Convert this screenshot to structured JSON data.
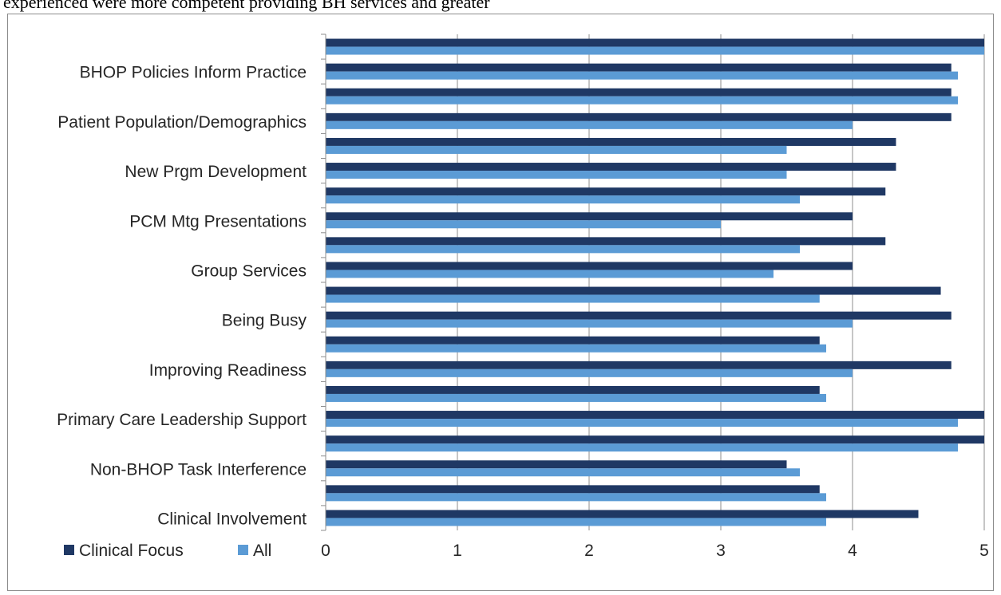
{
  "page": {
    "top_text": "experienced were more competent providing BH services and greater"
  },
  "chart_data": {
    "type": "bar",
    "orientation": "horizontal",
    "title": "",
    "xlabel": "",
    "ylabel": "",
    "xlim": [
      0,
      5
    ],
    "x_ticks": [
      "0",
      "1",
      "2",
      "3",
      "4",
      "5"
    ],
    "grid": "vertical major gridlines",
    "legend_position": "bottom-left",
    "categories": [
      "Clinical Involvement",
      "",
      "Non-BHOP Task Interference",
      "",
      "Primary Care Leadership Support",
      "",
      "Improving Readiness",
      "",
      "Being Busy",
      "",
      "Group Services",
      "",
      "PCM Mtg Presentations",
      "",
      "New Prgm Development",
      "",
      "Patient Population/Demographics",
      "",
      "BHOP Policies Inform Practice",
      ""
    ],
    "series": [
      {
        "name": "Clinical Focus",
        "color": "#1f3864",
        "values": [
          4.5,
          3.75,
          3.5,
          5.0,
          5.0,
          3.75,
          4.75,
          3.75,
          4.75,
          4.67,
          4.0,
          4.25,
          4.0,
          4.25,
          4.33,
          4.33,
          4.75,
          4.75,
          4.75,
          5.0
        ]
      },
      {
        "name": "All",
        "color": "#5b9bd5",
        "values": [
          3.8,
          3.8,
          3.6,
          4.8,
          4.8,
          3.8,
          4.0,
          3.8,
          4.0,
          3.75,
          3.4,
          3.6,
          3.0,
          3.6,
          3.5,
          3.5,
          4.0,
          4.8,
          4.8,
          5.0
        ]
      }
    ]
  }
}
